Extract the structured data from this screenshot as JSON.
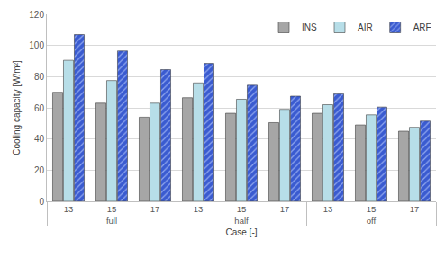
{
  "chart_data": {
    "type": "bar",
    "x_label": "Case [-]",
    "y_label": "Cooling capacity [W/m²]",
    "categories": [
      "13",
      "15",
      "17",
      "13",
      "15",
      "17",
      "13",
      "15",
      "17"
    ],
    "category_groups": [
      "full",
      "full",
      "full",
      "half",
      "half",
      "half",
      "off",
      "off",
      "off"
    ],
    "series": [
      {
        "name": "INS",
        "color": "#a6a6a6",
        "values": [
          70,
          63,
          54,
          66.5,
          56.5,
          50.5,
          56.5,
          49,
          45
        ]
      },
      {
        "name": "AIR",
        "color": "#b7dee8",
        "values": [
          90.5,
          77.5,
          63,
          76,
          65.5,
          59,
          62,
          55.5,
          47.5
        ]
      },
      {
        "name": "ARF",
        "color": "#3a5bd0",
        "values": [
          107,
          96.5,
          84.5,
          88.5,
          74.5,
          67.5,
          69,
          60.5,
          51.5
        ]
      }
    ],
    "ylim": [
      0,
      120
    ],
    "yticks": [
      0,
      20,
      40,
      60,
      80,
      100,
      120
    ],
    "grid": true,
    "legend": "upper right"
  }
}
